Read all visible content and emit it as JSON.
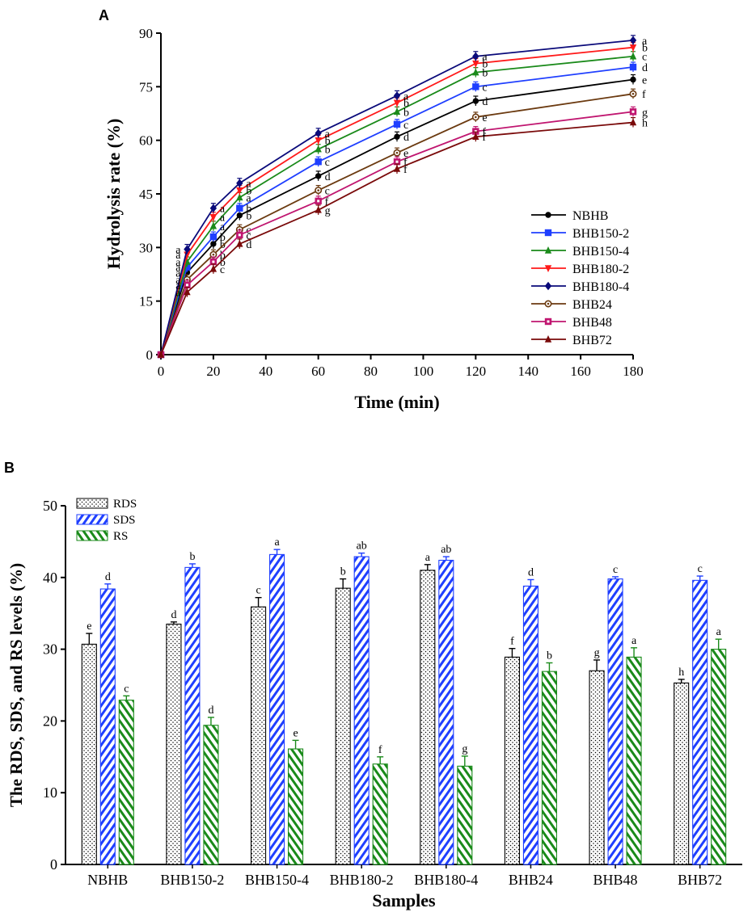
{
  "colors": {
    "NBHB": "#000000",
    "BHB150-2": "#1f3fff",
    "BHB150-4": "#1a8a1a",
    "BHB180-2": "#ff1a1a",
    "BHB180-4": "#0a0a7a",
    "BHB24": "#6b3a10",
    "BHB48": "#c01670",
    "BHB72": "#7a0a0a",
    "RDS": "#000000",
    "SDS": "#1f3fff",
    "RS": "#1a8a1a"
  },
  "chart_data": [
    {
      "panel": "A",
      "type": "line",
      "xlabel": "Time (min)",
      "ylabel": "Hydrolysis rate (%)",
      "xlim": [
        0,
        180
      ],
      "ylim": [
        0,
        90
      ],
      "xticks": [
        0,
        20,
        40,
        60,
        80,
        100,
        120,
        140,
        160,
        180
      ],
      "yticks": [
        0,
        15,
        30,
        45,
        60,
        75,
        90
      ],
      "legend_position": "right-center",
      "x": [
        0,
        10,
        20,
        30,
        60,
        90,
        120,
        180
      ],
      "series": [
        {
          "name": "NBHB",
          "marker": "circle",
          "values": [
            0,
            23,
            31,
            39,
            50,
            61,
            71,
            77
          ],
          "letters": [
            "",
            "a",
            "b",
            "b",
            "d",
            "d",
            "d",
            "e"
          ]
        },
        {
          "name": "BHB150-2",
          "marker": "square",
          "values": [
            0,
            24.5,
            33,
            41,
            54,
            64.5,
            75,
            80.5
          ],
          "letters": [
            "",
            "a",
            "b",
            "b",
            "c",
            "c",
            "c",
            "d"
          ]
        },
        {
          "name": "BHB150-4",
          "marker": "triangle-up",
          "values": [
            0,
            26,
            36,
            44,
            57.5,
            68,
            79,
            83.5
          ],
          "letters": [
            "",
            "a",
            "a",
            "a",
            "b",
            "b",
            "b",
            "c"
          ]
        },
        {
          "name": "BHB180-2",
          "marker": "triangle-down",
          "values": [
            0,
            28,
            38.5,
            46,
            60,
            70.5,
            81.5,
            86
          ],
          "letters": [
            "",
            "a",
            "a",
            "b",
            "b",
            "b",
            "b",
            "b"
          ]
        },
        {
          "name": "BHB180-4",
          "marker": "diamond",
          "values": [
            0,
            29.5,
            41,
            48,
            62,
            72.5,
            83.5,
            88
          ],
          "letters": [
            "",
            "a",
            "a",
            "a",
            "a",
            "a",
            "a",
            "a"
          ]
        },
        {
          "name": "BHB24",
          "marker": "circle-open",
          "values": [
            0,
            21,
            28,
            35,
            46,
            56.5,
            66.5,
            73
          ],
          "letters": [
            "",
            "a",
            "b",
            "c",
            "c",
            "e",
            "e",
            "f"
          ]
        },
        {
          "name": "BHB48",
          "marker": "square-dot",
          "values": [
            0,
            19.5,
            26,
            33.5,
            43,
            54,
            62.5,
            68
          ],
          "letters": [
            "",
            "a",
            "b",
            "c",
            "f",
            "f",
            "f",
            "g"
          ]
        },
        {
          "name": "BHB72",
          "marker": "triangle-up",
          "values": [
            0,
            17.5,
            24,
            31,
            40.5,
            52,
            61,
            65
          ],
          "letters": [
            "",
            "a",
            "c",
            "d",
            "g",
            "f",
            "f",
            "h"
          ]
        }
      ]
    },
    {
      "panel": "B",
      "type": "bar",
      "xlabel": "Samples",
      "ylabel": "The RDS, SDS, and RS levels (%)",
      "ylim": [
        0,
        50
      ],
      "yticks": [
        0,
        10,
        20,
        30,
        40,
        50
      ],
      "legend_position": "top-left",
      "categories": [
        "NBHB",
        "BHB150-2",
        "BHB150-4",
        "BHB180-2",
        "BHB180-4",
        "BHB24",
        "BHB48",
        "BHB72"
      ],
      "series": [
        {
          "name": "RDS",
          "pattern": "dots",
          "values": [
            30.7,
            33.5,
            35.9,
            38.5,
            41.0,
            28.9,
            27.0,
            25.3
          ],
          "errors": [
            1.5,
            0.3,
            1.3,
            1.3,
            0.8,
            1.2,
            1.5,
            0.5
          ],
          "letters": [
            "e",
            "d",
            "c",
            "b",
            "a",
            "f",
            "g",
            "h"
          ]
        },
        {
          "name": "SDS",
          "pattern": "diagonal",
          "values": [
            38.4,
            41.4,
            43.2,
            42.9,
            42.4,
            38.8,
            39.8,
            39.6
          ],
          "errors": [
            0.7,
            0.5,
            0.7,
            0.5,
            0.5,
            0.9,
            0.3,
            0.6
          ],
          "letters": [
            "d",
            "b",
            "a",
            "ab",
            "ab",
            "d",
            "c",
            "c"
          ]
        },
        {
          "name": "RS",
          "pattern": "diagonal-reverse",
          "values": [
            22.9,
            19.4,
            16.1,
            14.0,
            13.7,
            26.9,
            28.9,
            30.0
          ],
          "errors": [
            0.6,
            1.1,
            1.2,
            1.0,
            1.4,
            1.2,
            1.3,
            1.4
          ],
          "letters": [
            "c",
            "d",
            "e",
            "f",
            "g",
            "b",
            "a",
            "a"
          ]
        }
      ]
    }
  ],
  "panelA": {
    "label": "A"
  },
  "panelB": {
    "label": "B"
  }
}
